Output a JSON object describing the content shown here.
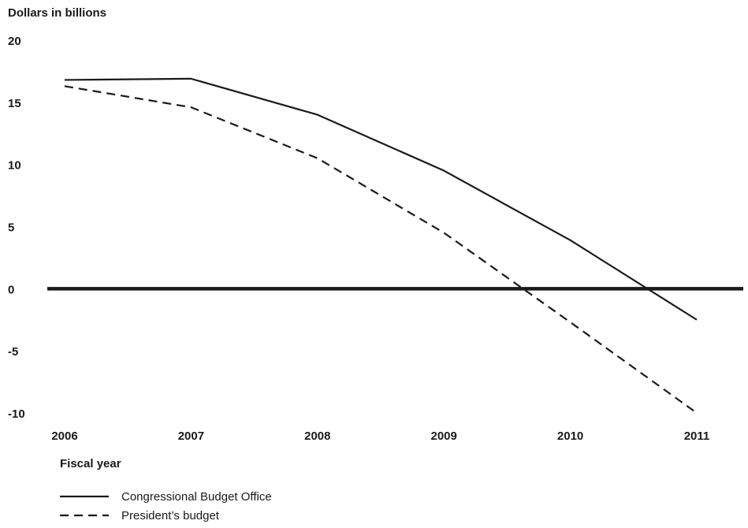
{
  "chart_data": {
    "type": "line",
    "ylabel": "Dollars in billions",
    "xlabel": "Fiscal year",
    "x": [
      2006,
      2007,
      2008,
      2009,
      2010,
      2011
    ],
    "x_tick_labels": [
      "2006",
      "2007",
      "2008",
      "2009",
      "2010",
      "2011"
    ],
    "y_tick_labels": [
      "20",
      "15",
      "10",
      "5",
      "0",
      "-5",
      "-10"
    ],
    "y_ticks": [
      20,
      15,
      10,
      5,
      0,
      -5,
      -10
    ],
    "ylim": [
      -10,
      20
    ],
    "grid": false,
    "zero_line": true,
    "series": [
      {
        "name": "Congressional Budget Office",
        "style": "solid",
        "values": [
          16.8,
          16.9,
          14.0,
          9.5,
          3.9,
          -2.5
        ]
      },
      {
        "name": "President’s budget",
        "style": "dashed",
        "values": [
          16.3,
          14.6,
          10.5,
          4.5,
          -2.7,
          -10.0
        ]
      }
    ],
    "legend_position": "bottom-left",
    "colors": {
      "line": "#1a1a1a",
      "background": "#ffffff"
    }
  }
}
